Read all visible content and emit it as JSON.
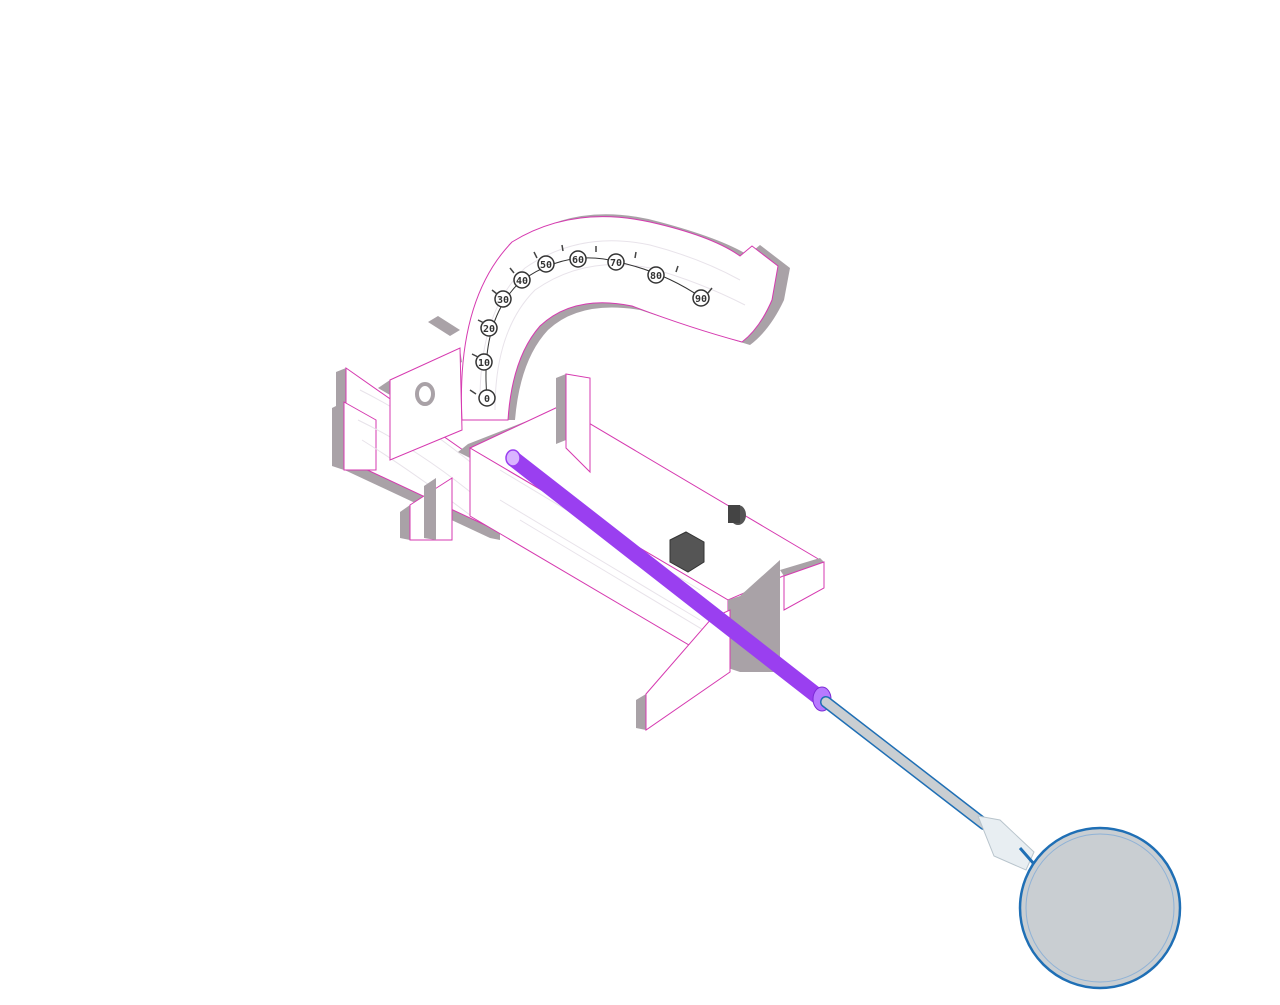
{
  "scale": {
    "labels": [
      "0",
      "10",
      "20",
      "30",
      "40",
      "50",
      "60",
      "70",
      "80",
      "90"
    ]
  },
  "colors": {
    "wood": "#ffffff",
    "wood_edge": "#a9a2a7",
    "outline": "#d63ab0",
    "rod": "#9a3ff0",
    "tube": "#c9ced2",
    "tube_outline": "#1f6fb5",
    "nut": "#555555"
  },
  "parts": [
    "frame",
    "quadrant-scale",
    "rod",
    "flexible-tube",
    "weight-disc",
    "hex-nut"
  ]
}
